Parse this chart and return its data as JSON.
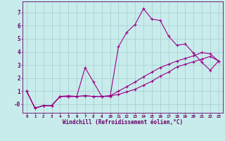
{
  "xlabel": "Windchill (Refroidissement éolien,°C)",
  "background_color": "#c8ecec",
  "grid_color": "#a8cccc",
  "line_color": "#990088",
  "text_color": "#660066",
  "x_ticks": [
    0,
    1,
    2,
    3,
    4,
    5,
    6,
    7,
    8,
    9,
    10,
    11,
    12,
    13,
    14,
    15,
    16,
    17,
    18,
    19,
    20,
    21,
    22,
    23
  ],
  "y_ticks": [
    0,
    1,
    2,
    3,
    4,
    5,
    6,
    7
  ],
  "y_tick_labels": [
    "-0",
    "1",
    "2",
    "3",
    "4",
    "5",
    "6",
    "7"
  ],
  "ylim": [
    -0.65,
    7.85
  ],
  "xlim": [
    -0.5,
    23.5
  ],
  "curve1_x": [
    0,
    1,
    2,
    3,
    4,
    5,
    6,
    7,
    8,
    9,
    10,
    11,
    12,
    13,
    14,
    15,
    16,
    17,
    18,
    19,
    20,
    21,
    22,
    23
  ],
  "curve1_y": [
    1.0,
    -0.3,
    -0.1,
    -0.1,
    0.6,
    0.65,
    0.6,
    2.8,
    1.7,
    0.6,
    0.6,
    4.4,
    5.5,
    6.1,
    7.3,
    6.5,
    6.4,
    5.2,
    4.5,
    4.6,
    3.9,
    3.2,
    2.6,
    3.3
  ],
  "curve2_x": [
    0,
    1,
    2,
    3,
    4,
    5,
    6,
    7,
    8,
    9,
    10,
    11,
    12,
    13,
    14,
    15,
    16,
    17,
    18,
    19,
    20,
    21,
    22,
    23
  ],
  "curve2_y": [
    1.0,
    -0.3,
    -0.1,
    -0.1,
    0.6,
    0.6,
    0.6,
    0.65,
    0.6,
    0.6,
    0.65,
    1.0,
    1.35,
    1.7,
    2.1,
    2.45,
    2.8,
    3.05,
    3.3,
    3.5,
    3.7,
    3.95,
    3.85,
    3.3
  ],
  "curve3_x": [
    0,
    1,
    2,
    3,
    4,
    5,
    6,
    7,
    8,
    9,
    10,
    11,
    12,
    13,
    14,
    15,
    16,
    17,
    18,
    19,
    20,
    21,
    22,
    23
  ],
  "curve3_y": [
    1.0,
    -0.3,
    -0.1,
    -0.1,
    0.6,
    0.6,
    0.6,
    0.65,
    0.6,
    0.6,
    0.65,
    0.75,
    0.95,
    1.15,
    1.45,
    1.75,
    2.15,
    2.45,
    2.85,
    3.05,
    3.25,
    3.45,
    3.65,
    3.3
  ]
}
